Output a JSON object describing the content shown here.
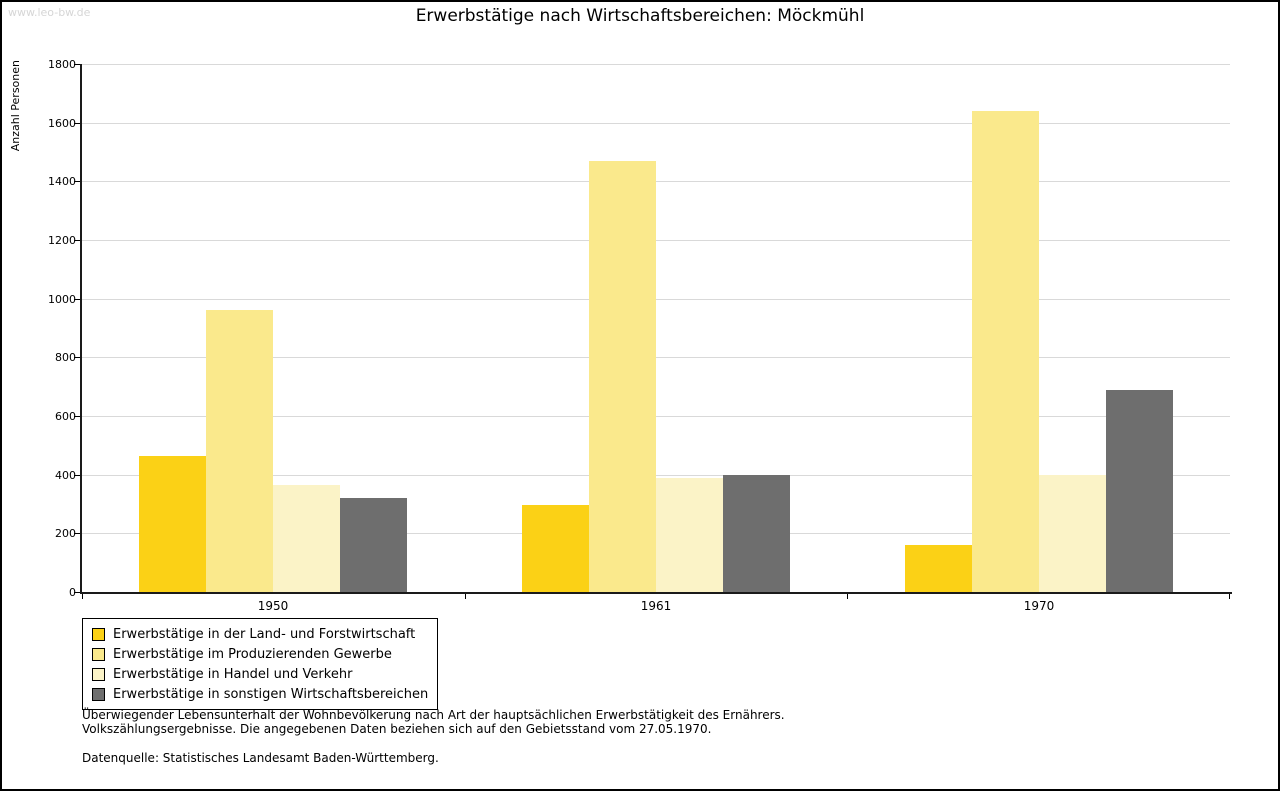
{
  "watermark": "www.leo-bw.de",
  "title": "Erwerbstätige nach Wirtschaftsbereichen: Möckmühl",
  "footnotes": {
    "line1": "Überwiegender Lebensunterhalt der Wohnbevölkerung nach Art der hauptsächlichen Erwerbstätigkeit des Ernährers.",
    "line2": "Volkszählungsergebnisse. Die angegebenen Daten beziehen sich auf den Gebietsstand vom 27.05.1970.",
    "source": "Datenquelle: Statistisches Landesamt Baden-Württemberg."
  },
  "chart_data": {
    "type": "bar",
    "title": "Erwerbstätige nach Wirtschaftsbereichen: Möckmühl",
    "xlabel": "",
    "ylabel": "Anzahl Personen",
    "ylim": [
      0,
      1800
    ],
    "ytick_step": 200,
    "grid": true,
    "legend_position": "bottom-left",
    "categories": [
      "1950",
      "1961",
      "1970"
    ],
    "series": [
      {
        "name": "Erwerbstätige in der Land- und Forstwirtschaft",
        "color": "#FBD116",
        "values": [
          465,
          295,
          160
        ]
      },
      {
        "name": "Erwerbstätige im Produzierenden Gewerbe",
        "color": "#FAE98C",
        "values": [
          960,
          1470,
          1640
        ]
      },
      {
        "name": "Erwerbstätige in Handel und Verkehr",
        "color": "#FBF3C7",
        "values": [
          365,
          390,
          400
        ]
      },
      {
        "name": "Erwerbstätige in sonstigen Wirtschaftsbereichen",
        "color": "#6E6E6E",
        "values": [
          320,
          400,
          690
        ]
      }
    ]
  }
}
